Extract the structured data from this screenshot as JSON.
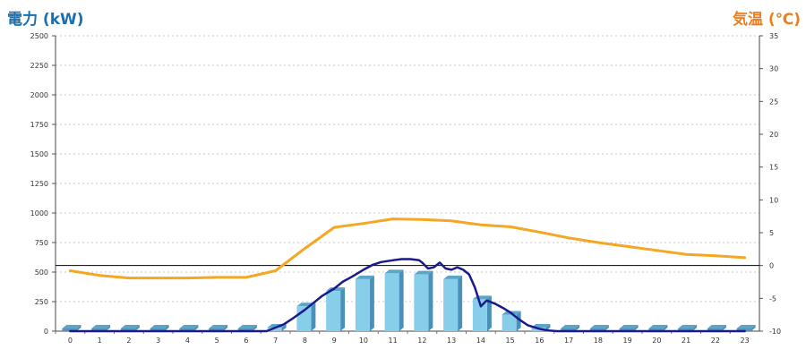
{
  "chart_data": {
    "type": "bar",
    "title_left": "電力 (kW)",
    "title_right": "気温 (℃)",
    "categories": [
      "0",
      "1",
      "2",
      "3",
      "4",
      "5",
      "6",
      "7",
      "8",
      "9",
      "10",
      "11",
      "12",
      "13",
      "14",
      "15",
      "16",
      "17",
      "18",
      "19",
      "20",
      "21",
      "22",
      "23"
    ],
    "y_left": {
      "ylim": [
        0,
        2500
      ],
      "ticks": [
        "0",
        "250",
        "500",
        "750",
        "1000",
        "1250",
        "1500",
        "1750",
        "2000",
        "2250",
        "2500"
      ]
    },
    "y_right": {
      "ylim": [
        -10,
        35
      ],
      "ticks": [
        "-10",
        "-5",
        "0",
        "5",
        "10",
        "15",
        "20",
        "25",
        "30",
        "35"
      ]
    },
    "bar_series": {
      "name": "",
      "color": "#87ceeb",
      "values": [
        0,
        0,
        0,
        0,
        0,
        0,
        0,
        30,
        210,
        340,
        440,
        490,
        480,
        440,
        270,
        140,
        30,
        0,
        0,
        0,
        0,
        0,
        0,
        0
      ]
    },
    "power_line": {
      "name": "",
      "color": "#1a1a8c",
      "x": [
        0,
        1,
        2,
        3,
        4,
        5,
        6,
        6.7,
        7,
        7.3,
        7.6,
        8,
        8.3,
        8.6,
        9,
        9.3,
        9.6,
        10,
        10.3,
        10.6,
        11,
        11.3,
        11.6,
        11.9,
        12,
        12.2,
        12.4,
        12.6,
        12.8,
        13,
        13.2,
        13.4,
        13.6,
        13.8,
        14,
        14.2,
        14.5,
        14.8,
        15,
        15.3,
        15.6,
        16,
        16.3,
        16.6,
        17,
        18,
        19,
        20,
        21,
        22,
        23
      ],
      "values": [
        0,
        0,
        0,
        0,
        0,
        0,
        0,
        0,
        30,
        60,
        110,
        180,
        240,
        300,
        360,
        420,
        460,
        520,
        560,
        585,
        600,
        610,
        610,
        600,
        580,
        530,
        540,
        580,
        530,
        520,
        540,
        520,
        480,
        370,
        210,
        260,
        230,
        190,
        160,
        100,
        50,
        20,
        5,
        0,
        0,
        0,
        0,
        0,
        0,
        0,
        0
      ]
    },
    "temperature_line": {
      "name": "",
      "color": "#f5a623",
      "x": [
        0,
        1,
        2,
        3,
        4,
        5,
        6,
        7,
        8,
        9,
        10,
        11,
        12,
        13,
        14,
        15,
        16,
        17,
        18,
        19,
        20,
        21,
        22,
        23
      ],
      "values": [
        -0.8,
        -1.5,
        -1.9,
        -1.9,
        -1.9,
        -1.8,
        -1.8,
        -0.8,
        2.6,
        5.8,
        6.4,
        7.1,
        7.0,
        6.8,
        6.2,
        5.9,
        5.1,
        4.2,
        3.5,
        2.9,
        2.3,
        1.7,
        1.5,
        1.2
      ]
    },
    "reference_line_right_value": 0,
    "grid": true
  }
}
